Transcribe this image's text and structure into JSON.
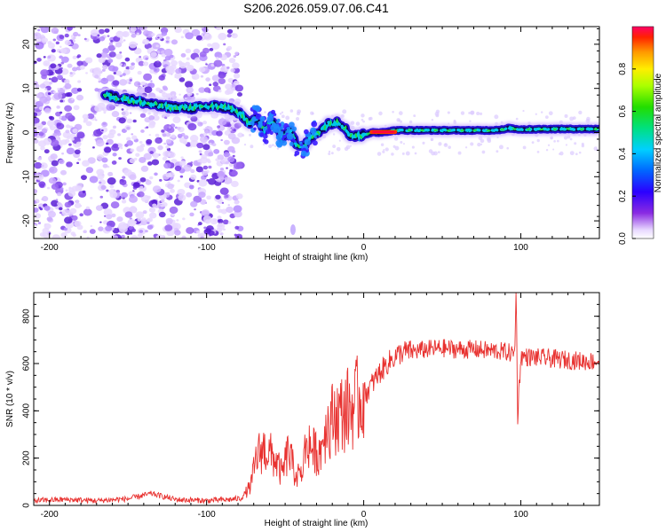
{
  "title": "S206.2026.059.07.06.C41",
  "colors": {
    "snr_line": "#e8312f",
    "axis": "#000000",
    "background": "#ffffff"
  },
  "chart_data": [
    {
      "type": "heatmap",
      "name": "spectrogram",
      "title": "S206.2026.059.07.06.C41",
      "xlabel": "Height of straight line (km)",
      "ylabel": "Frequency (Hz)",
      "xlim": [
        -210,
        150
      ],
      "ylim": [
        -24,
        24
      ],
      "xticks": [
        -200,
        -100,
        0,
        100
      ],
      "yticks": [
        -20,
        -10,
        0,
        10,
        20
      ],
      "colorbar": {
        "label": "Normalized spectral amplitude",
        "range": [
          0,
          1
        ],
        "ticks": [
          0.0,
          0.2,
          0.4,
          0.6,
          0.8
        ],
        "tick_labels": [
          "0.0",
          "0.2",
          "0.4",
          "0.6",
          "0.8"
        ]
      },
      "ridge": {
        "x": [
          -165,
          -150,
          -130,
          -110,
          -95,
          -85,
          -78,
          -72,
          -68,
          -63,
          -58,
          -52,
          -47,
          -43,
          -38,
          -33,
          -28,
          -22,
          -17,
          -13,
          -9,
          -5,
          0,
          5,
          10,
          20,
          40,
          60,
          80,
          90,
          92,
          100,
          120,
          150
        ],
        "y": [
          8.5,
          7.5,
          6.0,
          5.5,
          6.0,
          5.5,
          4.0,
          2.0,
          3.5,
          0.5,
          2.5,
          -1.0,
          0.5,
          -2.5,
          -3.0,
          -1.0,
          0.5,
          2.0,
          2.5,
          1.5,
          -0.5,
          -0.8,
          -0.5,
          0.0,
          0.0,
          0.5,
          0.5,
          0.5,
          0.5,
          0.7,
          1.0,
          0.7,
          0.8,
          0.8
        ],
        "peak_x": [
          5,
          20
        ]
      },
      "scatter_region_km": [
        -210,
        -78
      ]
    },
    {
      "type": "line",
      "name": "snr",
      "xlabel": "Height of straight line (km)",
      "ylabel": "SNR (10 * v/v)",
      "xlim": [
        -210,
        150
      ],
      "ylim": [
        0,
        900
      ],
      "xticks": [
        -200,
        -100,
        0,
        100
      ],
      "yticks": [
        0,
        200,
        400,
        600,
        800
      ],
      "series": [
        {
          "name": "SNR",
          "x": [
            -210,
            -190,
            -170,
            -150,
            -135,
            -120,
            -100,
            -85,
            -78,
            -72,
            -68,
            -64,
            -60,
            -56,
            -52,
            -48,
            -44,
            -40,
            -36,
            -32,
            -28,
            -25,
            -22,
            -18,
            -14,
            -10,
            -6,
            -2,
            2,
            6,
            10,
            15,
            20,
            25,
            30,
            40,
            50,
            60,
            70,
            80,
            90,
            96,
            97,
            98,
            100,
            110,
            120,
            130,
            140,
            150
          ],
          "y": [
            20,
            25,
            20,
            28,
            50,
            25,
            20,
            25,
            30,
            80,
            210,
            240,
            220,
            190,
            130,
            230,
            140,
            120,
            280,
            230,
            220,
            310,
            350,
            380,
            390,
            410,
            420,
            460,
            480,
            520,
            560,
            600,
            630,
            650,
            650,
            660,
            665,
            660,
            660,
            655,
            650,
            640,
            900,
            380,
            630,
            625,
            620,
            615,
            610,
            610
          ]
        }
      ]
    }
  ]
}
